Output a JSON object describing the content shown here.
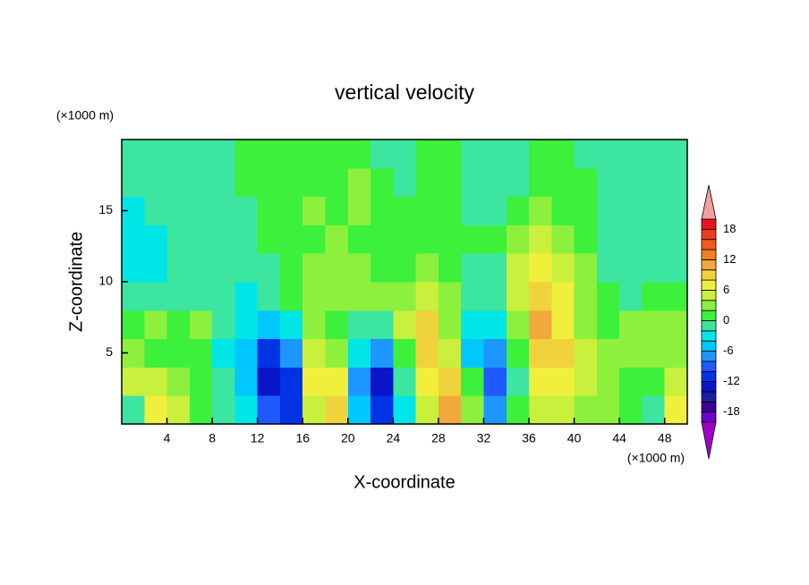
{
  "chart_data": {
    "type": "contour",
    "title": "vertical velocity",
    "xlabel": "X-coordinate",
    "ylabel": "Z-coordinate",
    "x_unit_label": "(×1000 m)",
    "y_unit_label": "(×1000 m)",
    "xlim": [
      0,
      50
    ],
    "ylim": [
      0,
      20
    ],
    "xticks": [
      4,
      8,
      12,
      16,
      20,
      24,
      28,
      32,
      36,
      40,
      44,
      48
    ],
    "yticks": [
      5,
      10,
      15
    ],
    "x": [
      1,
      3,
      5,
      7,
      9,
      11,
      13,
      15,
      17,
      19,
      21,
      23,
      25,
      27,
      29,
      31,
      33,
      35,
      37,
      39,
      41,
      43,
      45,
      47,
      49
    ],
    "y": [
      1,
      3,
      5,
      7,
      9,
      11,
      13,
      15,
      17,
      19
    ],
    "values": [
      [
        -2,
        6,
        4,
        0,
        -2,
        -4,
        -10,
        -12,
        4,
        8,
        -6,
        -12,
        -4,
        4,
        10,
        2,
        -8,
        0,
        4,
        4,
        2,
        2,
        0,
        -2,
        6
      ],
      [
        4,
        4,
        2,
        0,
        -2,
        -6,
        -14,
        -12,
        6,
        6,
        -8,
        -14,
        -2,
        6,
        8,
        0,
        -10,
        -2,
        6,
        6,
        4,
        2,
        0,
        0,
        4
      ],
      [
        2,
        0,
        0,
        0,
        -4,
        -6,
        -12,
        -8,
        4,
        2,
        -4,
        -8,
        0,
        8,
        4,
        -6,
        -8,
        0,
        8,
        8,
        4,
        2,
        2,
        2,
        2
      ],
      [
        0,
        2,
        0,
        2,
        -2,
        -4,
        -6,
        -4,
        2,
        0,
        -2,
        -2,
        4,
        8,
        2,
        -4,
        -4,
        2,
        10,
        6,
        2,
        0,
        2,
        2,
        2
      ],
      [
        -2,
        -2,
        -2,
        -2,
        -2,
        -4,
        -2,
        0,
        2,
        2,
        2,
        2,
        2,
        4,
        2,
        -2,
        -2,
        4,
        8,
        6,
        2,
        0,
        -2,
        0,
        0
      ],
      [
        -4,
        -4,
        -2,
        -2,
        -2,
        -2,
        -2,
        0,
        2,
        2,
        2,
        0,
        0,
        2,
        0,
        -2,
        -2,
        4,
        6,
        4,
        2,
        -2,
        -2,
        -2,
        -2
      ],
      [
        -4,
        -4,
        -2,
        -2,
        -2,
        -2,
        0,
        0,
        0,
        2,
        0,
        0,
        0,
        0,
        0,
        0,
        0,
        2,
        4,
        2,
        0,
        -2,
        -2,
        -2,
        -2
      ],
      [
        -4,
        -2,
        -2,
        -2,
        -2,
        -2,
        0,
        0,
        2,
        0,
        2,
        0,
        0,
        0,
        0,
        -2,
        -2,
        0,
        2,
        0,
        0,
        -2,
        -2,
        -2,
        -2
      ],
      [
        -2,
        -2,
        -2,
        -2,
        -2,
        0,
        0,
        0,
        0,
        0,
        2,
        0,
        -2,
        0,
        0,
        -2,
        -2,
        -2,
        0,
        0,
        0,
        -2,
        -2,
        -2,
        -2
      ],
      [
        -2,
        -2,
        -2,
        -2,
        -2,
        0,
        0,
        0,
        0,
        0,
        0,
        -2,
        -2,
        0,
        0,
        -2,
        -2,
        -2,
        0,
        0,
        -2,
        -2,
        -2,
        -2,
        -2
      ]
    ],
    "levels": [
      -20,
      -18,
      -16,
      -14,
      -12,
      -10,
      -8,
      -6,
      -4,
      -2,
      0,
      2,
      4,
      6,
      8,
      10,
      12,
      14,
      16,
      18,
      20
    ],
    "colors": [
      "#a000c8",
      "#6e00c8",
      "#3c0096",
      "#1e1ea0",
      "#0a14c8",
      "#0032e6",
      "#1e5aff",
      "#1e96ff",
      "#00c8ff",
      "#00e6e6",
      "#3ce6a0",
      "#3cf03c",
      "#8cf03c",
      "#c8f03c",
      "#f0f03c",
      "#f0d23c",
      "#f0aa3c",
      "#f0821e",
      "#f05a1e",
      "#f03c1e",
      "#e6141e",
      "#f0a0a0"
    ],
    "colorbar_ticks": [
      -18,
      -12,
      -6,
      0,
      6,
      12,
      18
    ]
  }
}
